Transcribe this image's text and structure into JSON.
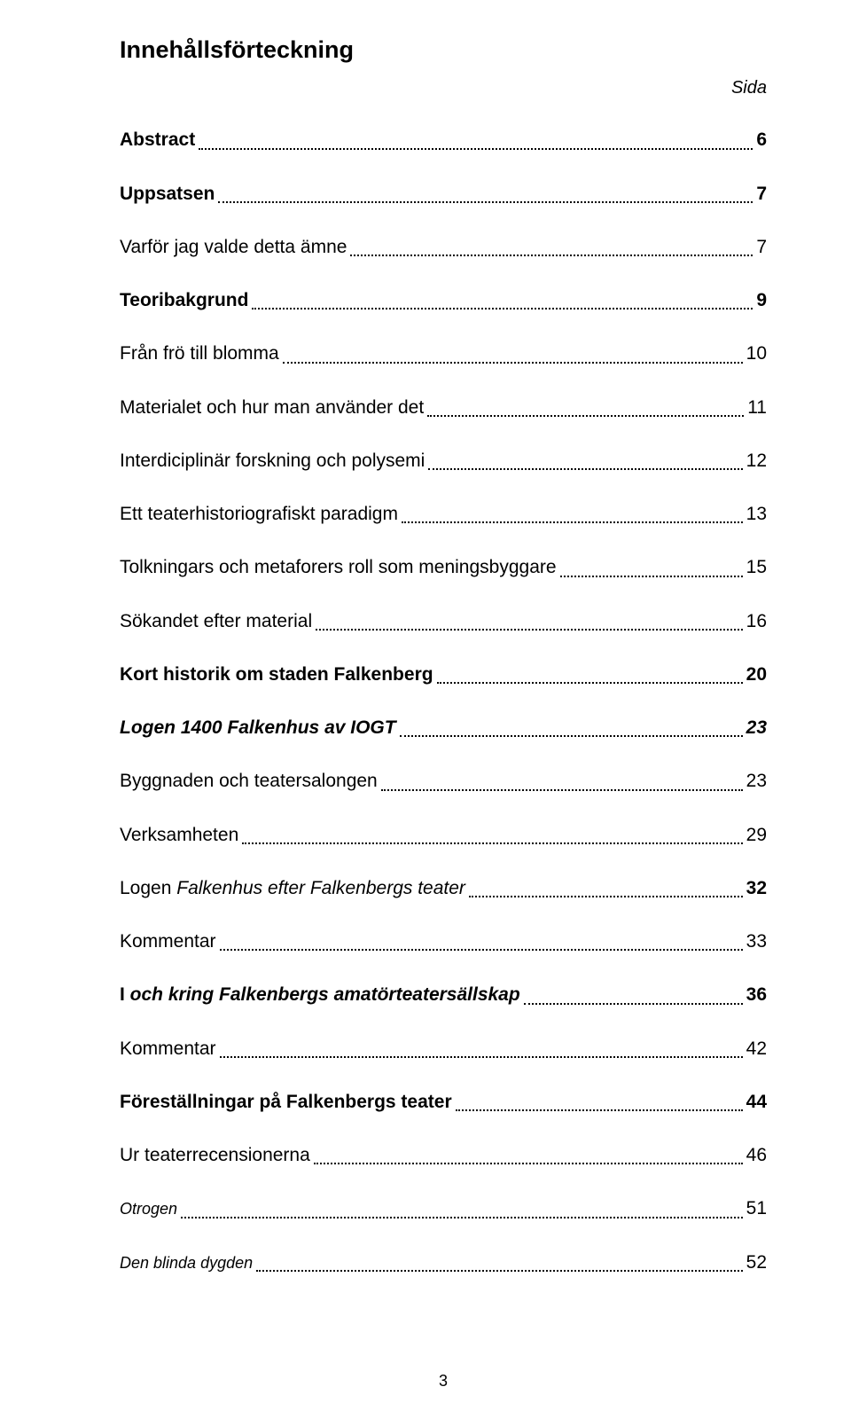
{
  "title": "Innehållsförteckning",
  "sida_label": "Sida",
  "rows": [
    {
      "label": "Abstract",
      "page": "6",
      "cls": "lvl-bold",
      "mb": 34
    },
    {
      "label": "Uppsatsen",
      "page": "7",
      "cls": "lvl-bold",
      "mb": 34
    },
    {
      "label": "Varför jag valde detta ämne",
      "page": "7",
      "cls": "lvl-plain",
      "mb": 34
    },
    {
      "label": "Teoribakgrund",
      "page": "9",
      "cls": "lvl-bold",
      "mb": 34
    },
    {
      "label": "Från frö till blomma",
      "page": "10",
      "cls": "lvl-plain",
      "mb": 34
    },
    {
      "label": "Materialet och hur man använder det",
      "page": "11",
      "cls": "lvl-plain",
      "mb": 34
    },
    {
      "label": "Interdiciplinär forskning och polysemi",
      "page": "12",
      "cls": "lvl-plain",
      "mb": 34
    },
    {
      "label": "Ett teaterhistoriografiskt paradigm",
      "page": "13",
      "cls": "lvl-plain",
      "mb": 34
    },
    {
      "label": "Tolkningars och metaforers roll som meningsbyggare",
      "page": "15",
      "cls": "lvl-plain",
      "mb": 34
    },
    {
      "label": "Sökandet efter material",
      "page": "16",
      "cls": "lvl-plain",
      "mb": 34
    },
    {
      "label": "Kort historik om staden Falkenberg",
      "page": "20",
      "cls": "lvl-bold",
      "mb": 34
    },
    {
      "label": "Logen 1400 Falkenhus av IOGT",
      "page": "23",
      "cls": "lvl-boldit",
      "mb": 34
    },
    {
      "label": "Byggnaden och teatersalongen",
      "page": "23",
      "cls": "lvl-plain",
      "mb": 34
    },
    {
      "label": "Verksamheten",
      "page": "29",
      "cls": "lvl-plain",
      "mb": 34
    },
    {
      "label_lead": "Logen",
      "label_rest": " Falkenhus efter Falkenbergs teater",
      "page": "32",
      "cls": "lvl-mixplain",
      "mb": 34
    },
    {
      "label": "Kommentar",
      "page": "33",
      "cls": "lvl-plain",
      "mb": 34
    },
    {
      "label_lead": "I",
      "label_rest": " och kring Falkenbergs amatörteatersällskap",
      "page": "36",
      "cls": "lvl-mixbold",
      "mb": 34
    },
    {
      "label": "Kommentar",
      "page": "42",
      "cls": "lvl-plain",
      "mb": 34
    },
    {
      "label": "Föreställningar på Falkenbergs teater",
      "page": "44",
      "cls": "lvl-bold",
      "mb": 34
    },
    {
      "label": "Ur teaterrecensionerna",
      "page": "46",
      "cls": "lvl-plain",
      "mb": 34
    },
    {
      "label": "Otrogen",
      "page": "51",
      "cls": "lvl-smit",
      "mb": 34
    },
    {
      "label": "Den blinda dygden",
      "page": "52",
      "cls": "lvl-smit",
      "mb": 0
    }
  ],
  "page_number": "3"
}
